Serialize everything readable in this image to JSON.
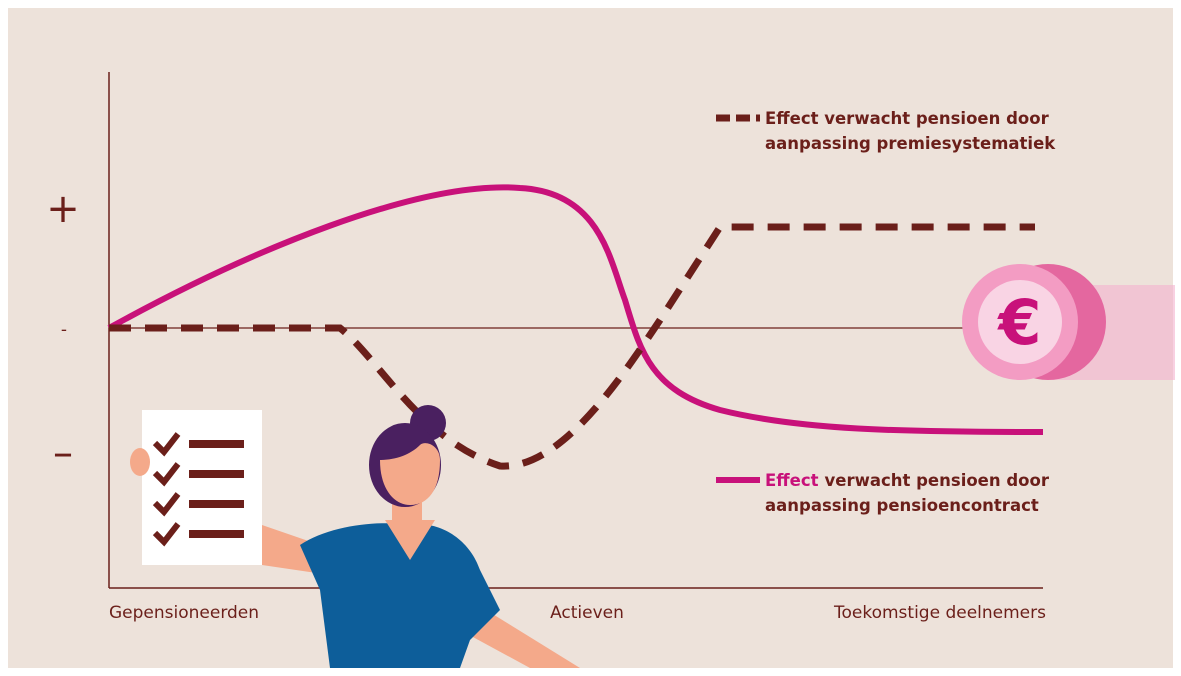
{
  "axis": {
    "plus": "+",
    "zero": "-",
    "minus": "–"
  },
  "x_labels": [
    "Gepensioneerden",
    "Actieven",
    "Toekomstige deelnemers"
  ],
  "legend": [
    {
      "lines": [
        "Effect verwacht pensioen door",
        "aanpassing premiesystematiek"
      ]
    },
    {
      "highlight": "Effect",
      "lines": [
        "verwacht pensioen door",
        "aanpassing pensioencontract"
      ]
    }
  ]
}
